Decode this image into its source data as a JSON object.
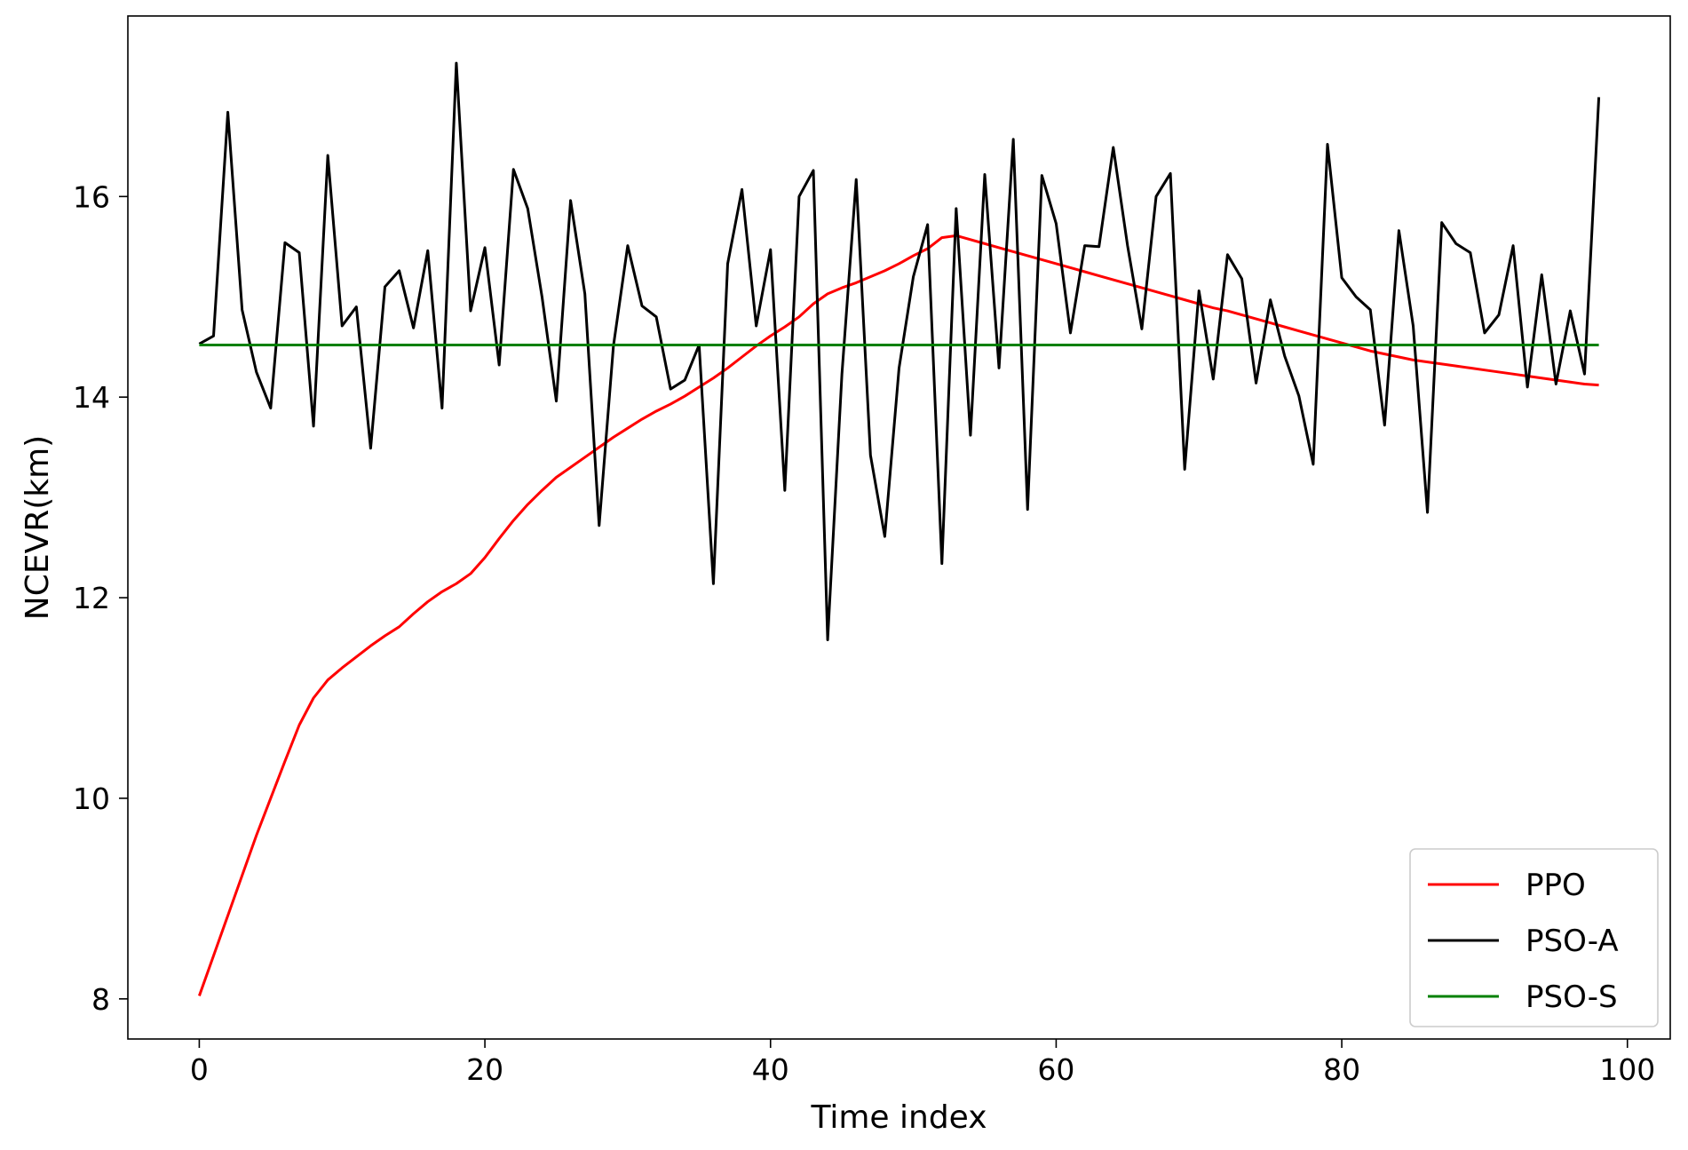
{
  "chart_data": {
    "type": "line",
    "xlabel": "Time index",
    "ylabel": "NCEVR(km)",
    "xlim": [
      -5,
      103
    ],
    "ylim": [
      7.6,
      17.8
    ],
    "xticks": [
      0,
      20,
      40,
      60,
      80,
      100
    ],
    "yticks": [
      8,
      10,
      12,
      14,
      16
    ],
    "grid": false,
    "legend_position": "lower right",
    "x": [
      0,
      1,
      2,
      3,
      4,
      5,
      6,
      7,
      8,
      9,
      10,
      11,
      12,
      13,
      14,
      15,
      16,
      17,
      18,
      19,
      20,
      21,
      22,
      23,
      24,
      25,
      26,
      27,
      28,
      29,
      30,
      31,
      32,
      33,
      34,
      35,
      36,
      37,
      38,
      39,
      40,
      41,
      42,
      43,
      44,
      45,
      46,
      47,
      48,
      49,
      50,
      51,
      52,
      53,
      54,
      55,
      56,
      57,
      58,
      59,
      60,
      61,
      62,
      63,
      64,
      65,
      66,
      67,
      68,
      69,
      70,
      71,
      72,
      73,
      74,
      75,
      76,
      77,
      78,
      79,
      80,
      81,
      82,
      83,
      84,
      85,
      86,
      87,
      88,
      89,
      90,
      91,
      92,
      93,
      94,
      95,
      96,
      97,
      98
    ],
    "series": [
      {
        "name": "PPO",
        "color": "#ff0000",
        "values": [
          8.03,
          8.43,
          8.83,
          9.23,
          9.63,
          10.0,
          10.37,
          10.73,
          11.0,
          11.18,
          11.3,
          11.41,
          11.52,
          11.62,
          11.71,
          11.84,
          11.96,
          12.06,
          12.14,
          12.24,
          12.4,
          12.59,
          12.77,
          12.93,
          13.07,
          13.2,
          13.3,
          13.4,
          13.5,
          13.6,
          13.69,
          13.78,
          13.86,
          13.93,
          14.01,
          14.1,
          14.19,
          14.29,
          14.4,
          14.51,
          14.61,
          14.7,
          14.8,
          14.93,
          15.03,
          15.09,
          15.14,
          15.2,
          15.26,
          15.33,
          15.41,
          15.48,
          15.59,
          15.61,
          15.57,
          15.53,
          15.49,
          15.45,
          15.41,
          15.37,
          15.33,
          15.29,
          15.25,
          15.21,
          15.17,
          15.13,
          15.09,
          15.05,
          15.01,
          14.97,
          14.93,
          14.89,
          14.86,
          14.82,
          14.78,
          14.74,
          14.7,
          14.66,
          14.62,
          14.58,
          14.54,
          14.5,
          14.46,
          14.43,
          14.4,
          14.37,
          14.35,
          14.33,
          14.31,
          14.29,
          14.27,
          14.25,
          14.23,
          14.21,
          14.19,
          14.17,
          14.15,
          14.13,
          14.12
        ]
      },
      {
        "name": "PSO-A",
        "color": "#000000",
        "values": [
          14.53,
          14.61,
          16.84,
          14.87,
          14.25,
          13.89,
          15.54,
          15.44,
          13.71,
          16.41,
          14.71,
          14.9,
          13.49,
          15.1,
          15.26,
          14.69,
          15.46,
          13.89,
          17.33,
          14.86,
          15.49,
          14.32,
          16.27,
          15.88,
          15.0,
          13.96,
          15.96,
          15.03,
          12.72,
          14.51,
          15.51,
          14.91,
          14.8,
          14.08,
          14.17,
          14.52,
          12.14,
          15.33,
          16.07,
          14.71,
          15.47,
          13.07,
          16.0,
          16.26,
          11.58,
          14.23,
          16.17,
          13.42,
          12.61,
          14.29,
          15.2,
          15.72,
          12.34,
          15.88,
          13.62,
          16.22,
          14.29,
          16.57,
          12.88,
          16.21,
          15.73,
          14.64,
          15.51,
          15.5,
          16.49,
          15.51,
          14.68,
          16.0,
          16.23,
          13.28,
          15.06,
          14.18,
          15.42,
          15.18,
          14.14,
          14.97,
          14.41,
          14.01,
          13.33,
          16.52,
          15.19,
          15.0,
          14.87,
          13.72,
          15.66,
          14.71,
          12.85,
          15.74,
          15.53,
          15.44,
          14.64,
          14.82,
          15.51,
          14.1,
          15.22,
          14.13,
          14.86,
          14.23,
          16.99
        ]
      },
      {
        "name": "PSO-S",
        "color": "#008000",
        "values": [
          14.52,
          14.52,
          14.52,
          14.52,
          14.52,
          14.52,
          14.52,
          14.52,
          14.52,
          14.52,
          14.52,
          14.52,
          14.52,
          14.52,
          14.52,
          14.52,
          14.52,
          14.52,
          14.52,
          14.52,
          14.52,
          14.52,
          14.52,
          14.52,
          14.52,
          14.52,
          14.52,
          14.52,
          14.52,
          14.52,
          14.52,
          14.52,
          14.52,
          14.52,
          14.52,
          14.52,
          14.52,
          14.52,
          14.52,
          14.52,
          14.52,
          14.52,
          14.52,
          14.52,
          14.52,
          14.52,
          14.52,
          14.52,
          14.52,
          14.52,
          14.52,
          14.52,
          14.52,
          14.52,
          14.52,
          14.52,
          14.52,
          14.52,
          14.52,
          14.52,
          14.52,
          14.52,
          14.52,
          14.52,
          14.52,
          14.52,
          14.52,
          14.52,
          14.52,
          14.52,
          14.52,
          14.52,
          14.52,
          14.52,
          14.52,
          14.52,
          14.52,
          14.52,
          14.52,
          14.52,
          14.52,
          14.52,
          14.52,
          14.52,
          14.52,
          14.52,
          14.52,
          14.52,
          14.52,
          14.52,
          14.52,
          14.52,
          14.52,
          14.52,
          14.52,
          14.52,
          14.52,
          14.52,
          14.52
        ]
      }
    ]
  }
}
